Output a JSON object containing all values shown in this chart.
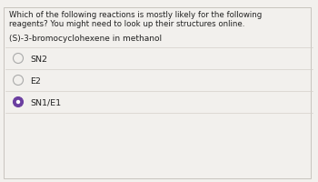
{
  "background_color": "#f2f0ed",
  "border_color": "#c8c4be",
  "question_text_line1": "Which of the following reactions is mostly likely for the following",
  "question_text_line2": "reagents? You might need to look up their structures online.",
  "reagent_text": "(S)-3-bromocyclohexene in methanol",
  "options": [
    "SN2",
    "E2",
    "SN1/E1"
  ],
  "selected_option": 2,
  "text_color": "#222222",
  "option_text_color": "#222222",
  "radio_unselected_edge": "#aaaaaa",
  "radio_selected_fill": "#6b3fa0",
  "radio_selected_edge": "#6b3fa0",
  "divider_color": "#d5d0ca",
  "font_size_question": 6.2,
  "font_size_reagent": 6.5,
  "font_size_option": 6.8,
  "fig_width": 3.5,
  "fig_height": 2.0,
  "dpi": 100
}
